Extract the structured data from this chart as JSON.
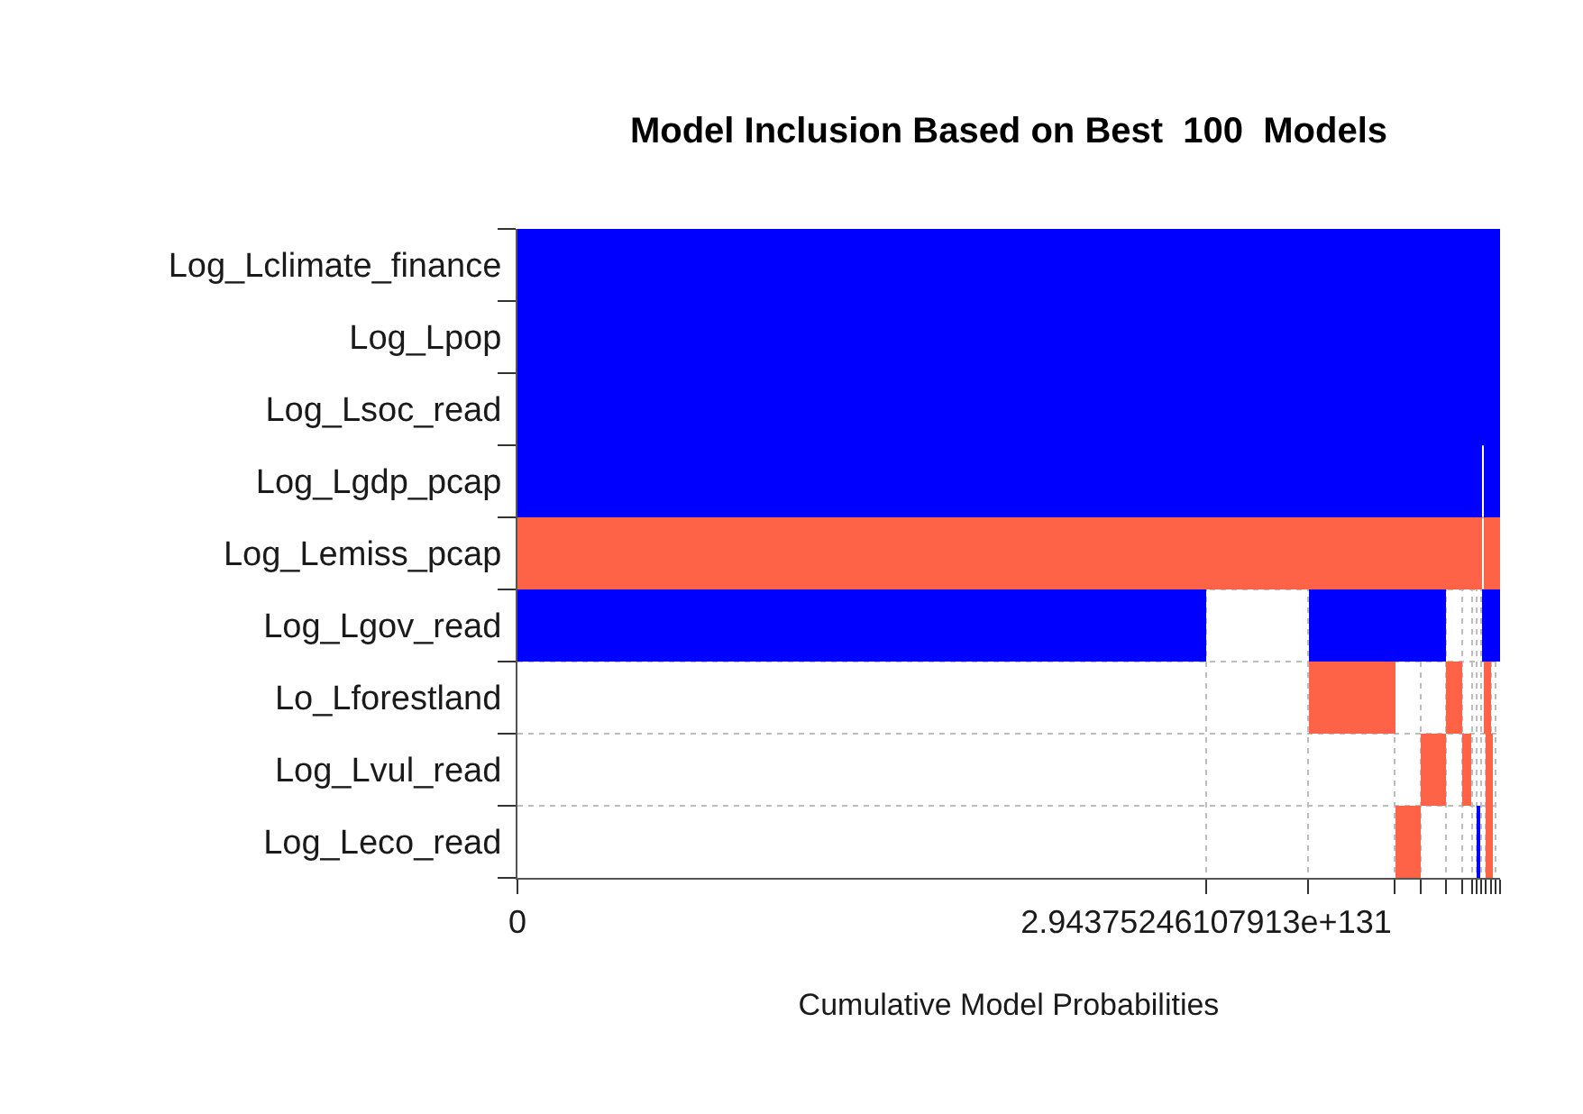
{
  "chart_data": {
    "type": "bar",
    "orientation": "horizontal",
    "title": "Model Inclusion Based on Best  100  Models",
    "xlabel": "Cumulative Model Probabilities",
    "categories": [
      "Log_Lclimate_finance",
      "Log_Lpop",
      "Log_Lsoc_read",
      "Log_Lgdp_pcap",
      "Log_Lemiss_pcap",
      "Log_Lgov_read",
      "Lo_Lforestland",
      "Log_Lvul_read",
      "Log_Leco_read"
    ],
    "series": [
      {
        "base": [
          0,
          0,
          0,
          0,
          0,
          0,
          3.38e+131,
          3.86e+131,
          3.75e+131
        ],
        "values": [
          4.2e+131,
          4.2e+131,
          4.2e+131,
          4.12e+131,
          4.12e+131,
          2.94e+131,
          3.7e+130,
          1.1e+130,
          1.1e+130
        ],
        "colors": [
          "#0000ff",
          "#0000ff",
          "#0000ff",
          "#0000ff",
          "#ff6347",
          "#0000ff",
          "#ff6347",
          "#ff6347",
          "#ff6347"
        ]
      },
      {
        "base": [
          null,
          null,
          null,
          4.13e+131,
          4.13e+131,
          3.38e+131,
          3.97e+131,
          4.04e+131,
          4.1e+131
        ],
        "values": [
          null,
          null,
          null,
          7e+129,
          7e+129,
          5.9e+130,
          7e+129,
          4e+129,
          1e+129
        ],
        "colors": [
          null,
          null,
          null,
          "#0000ff",
          "#ff6347",
          "#0000ff",
          "#ff6347",
          "#ff6347",
          "#0000ff"
        ]
      },
      {
        "base": [
          null,
          null,
          null,
          null,
          null,
          4.12e+131,
          4.13e+131,
          4.14e+131,
          4.14e+131
        ],
        "values": [
          null,
          null,
          null,
          null,
          null,
          8e+129,
          3e+129,
          3e+129,
          3e+129
        ],
        "colors": [
          null,
          null,
          null,
          null,
          null,
          "#0000ff",
          "#ff6347",
          "#ff6347",
          "#ff6347"
        ]
      }
    ],
    "xlim": [
      0,
      4.2e+131
    ],
    "xticks": [
      0,
      {
        "value": 2.94375246107913e+131,
        "label": "2.94375246107913e+131"
      },
      {
        "value": 3.38e+131,
        "label": null
      },
      {
        "value": 3.75e+131,
        "label": null
      },
      {
        "value": 3.86e+131,
        "label": null
      },
      {
        "value": 3.97e+131,
        "label": null
      },
      {
        "value": 4.04e+131,
        "label": null
      },
      {
        "value": 4.08e+131,
        "label": null
      },
      {
        "value": 4.1e+131,
        "label": null
      },
      {
        "value": 4.12e+131,
        "label": null
      },
      {
        "value": 4.14e+131,
        "label": null
      },
      {
        "value": 4.16e+131,
        "label": null
      },
      {
        "value": 4.18e+131,
        "label": null
      },
      {
        "value": 4.2e+131,
        "label": null
      }
    ],
    "grid": true
  }
}
